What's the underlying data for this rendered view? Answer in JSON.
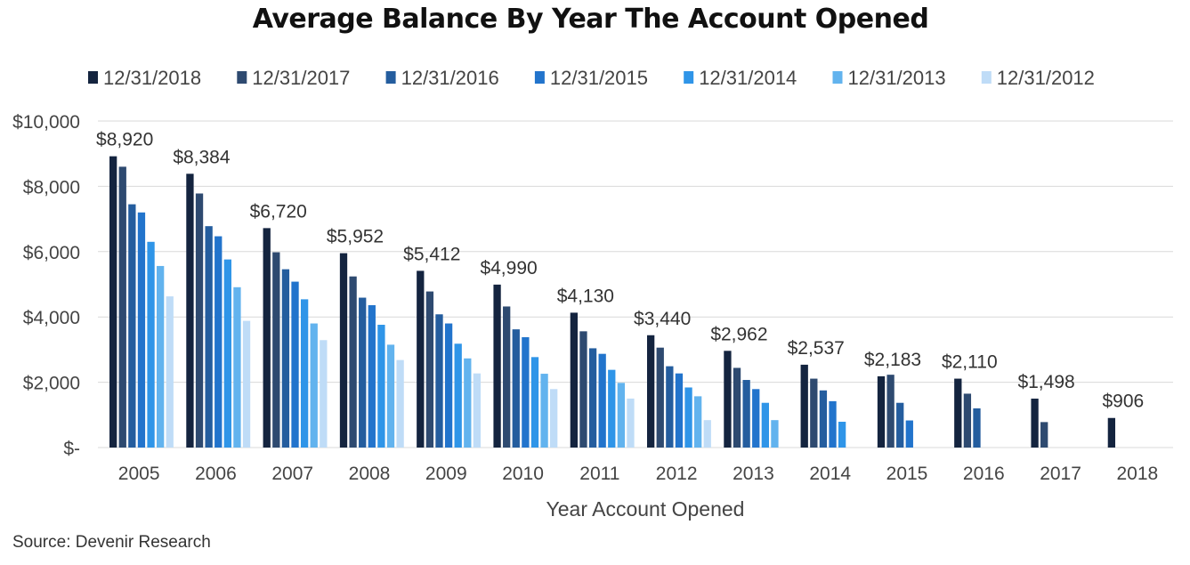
{
  "chart_data": {
    "type": "bar",
    "title": "Average Balance By Year The Account Opened",
    "xlabel": "Year Account Opened",
    "ylabel": "",
    "ylim": [
      0,
      10000
    ],
    "yticks": [
      {
        "value": 0,
        "label": "$-"
      },
      {
        "value": 2000,
        "label": "$2,000"
      },
      {
        "value": 4000,
        "label": "$4,000"
      },
      {
        "value": 6000,
        "label": "$6,000"
      },
      {
        "value": 8000,
        "label": "$8,000"
      },
      {
        "value": 10000,
        "label": "$10,000"
      }
    ],
    "grid": true,
    "legend_position": "top",
    "categories": [
      "2005",
      "2006",
      "2007",
      "2008",
      "2009",
      "2010",
      "2011",
      "2012",
      "2013",
      "2014",
      "2015",
      "2016",
      "2017",
      "2018"
    ],
    "series": [
      {
        "name": "12/31/2018",
        "color": "#14243f",
        "values": [
          8920,
          8384,
          6720,
          5952,
          5412,
          4990,
          4130,
          3440,
          2962,
          2537,
          2183,
          2110,
          1498,
          906
        ]
      },
      {
        "name": "12/31/2017",
        "color": "#2e4a70",
        "values": [
          8600,
          7780,
          5980,
          5240,
          4780,
          4320,
          3560,
          3060,
          2440,
          2110,
          2230,
          1650,
          780,
          null
        ]
      },
      {
        "name": "12/31/2016",
        "color": "#245d9e",
        "values": [
          7450,
          6780,
          5460,
          4590,
          4080,
          3620,
          3040,
          2490,
          2070,
          1750,
          1370,
          1200,
          null,
          null
        ]
      },
      {
        "name": "12/31/2015",
        "color": "#2274cc",
        "values": [
          7200,
          6470,
          5080,
          4360,
          3800,
          3380,
          2870,
          2270,
          1790,
          1420,
          830,
          null,
          null,
          null
        ]
      },
      {
        "name": "12/31/2014",
        "color": "#2f95e8",
        "values": [
          6300,
          5760,
          4540,
          3760,
          3180,
          2770,
          2380,
          1840,
          1370,
          790,
          null,
          null,
          null,
          null
        ]
      },
      {
        "name": "12/31/2013",
        "color": "#62b3ee",
        "values": [
          5560,
          4910,
          3800,
          3150,
          2730,
          2260,
          1980,
          1570,
          840,
          null,
          null,
          null,
          null,
          null
        ]
      },
      {
        "name": "12/31/2012",
        "color": "#bfdcf7",
        "values": [
          4630,
          3880,
          3290,
          2680,
          2270,
          1790,
          1500,
          840,
          null,
          null,
          null,
          null,
          null,
          null
        ]
      }
    ],
    "data_labels": [
      "$8,920",
      "$8,384",
      "$6,720",
      "$5,952",
      "$5,412",
      "$4,990",
      "$4,130",
      "$3,440",
      "$2,962",
      "$2,537",
      "$2,183",
      "$2,110",
      "$1,498",
      "$906"
    ]
  },
  "source": "Source: Devenir Research"
}
